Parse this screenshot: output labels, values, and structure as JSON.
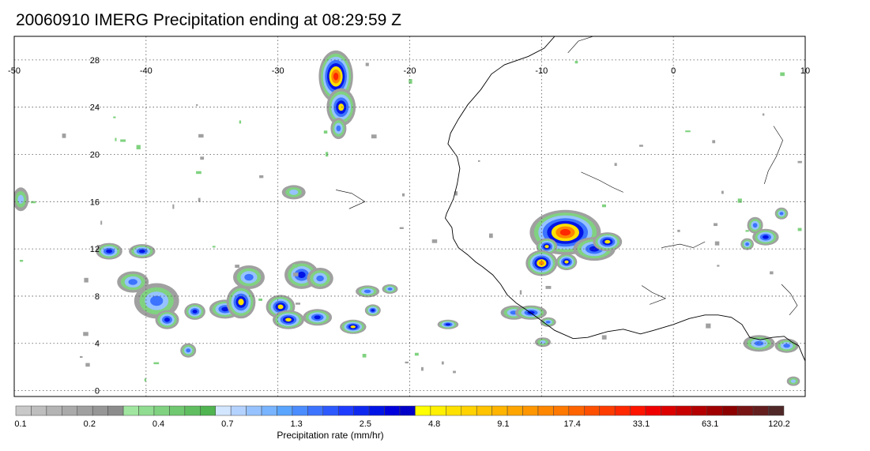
{
  "title": "20060910 IMERG Precipitation ending at 08:29:59 Z",
  "map": {
    "lon_labels": [
      "-50",
      "-40",
      "-30",
      "-20",
      "-10",
      "0",
      "10"
    ],
    "lon_values": [
      -50,
      -40,
      -30,
      -20,
      -10,
      0,
      10
    ],
    "lat_labels": [
      "0",
      "4",
      "8",
      "12",
      "16",
      "20",
      "24",
      "28"
    ],
    "lat_values": [
      0,
      4,
      8,
      12,
      16,
      20,
      24,
      28
    ],
    "lon_range": [
      -50,
      10
    ],
    "lat_range": [
      -0.5,
      30
    ],
    "grid": "dotted",
    "coastline_color": "#000000",
    "features": [
      {
        "name": "storm-cluster-north-atlantic",
        "lon": -25.5,
        "lat": 26.0,
        "intensity": "high"
      },
      {
        "name": "storm-cluster-guinea",
        "lon": -8.0,
        "lat": 13.0,
        "intensity": "very-high"
      },
      {
        "name": "storm-band-itcz-west",
        "lon": -37.0,
        "lat": 7.0,
        "intensity": "moderate"
      },
      {
        "name": "storm-band-itcz-central",
        "lon": -28.0,
        "lat": 6.5,
        "intensity": "moderate"
      },
      {
        "name": "storm-cluster-gulf-of-guinea",
        "lon": 7.0,
        "lat": 13.0,
        "intensity": "moderate"
      }
    ]
  },
  "colorbar": {
    "title": "Precipitation rate (mm/hr)",
    "tick_labels": [
      "0.1",
      "0.2",
      "0.4",
      "0.7",
      "1.3",
      "2.5",
      "4.8",
      "9.1",
      "17.4",
      "33.1",
      "63.1",
      "120.2"
    ],
    "colors": [
      "#c8c8c8",
      "#bebebe",
      "#b4b4b4",
      "#aaaaaa",
      "#a0a0a0",
      "#969696",
      "#8c8c8c",
      "#a0e6a0",
      "#90dc90",
      "#80d280",
      "#70c870",
      "#60be60",
      "#50b450",
      "#d2e6ff",
      "#b4d2ff",
      "#96c3ff",
      "#78b4ff",
      "#5aa5ff",
      "#4b8cff",
      "#3c73ff",
      "#2d5aff",
      "#1e3cff",
      "#0f28f0",
      "#0014e6",
      "#0000dc",
      "#0000c8",
      "#ffff00",
      "#fff000",
      "#ffe100",
      "#ffd200",
      "#ffc300",
      "#ffb400",
      "#ffa500",
      "#ff9600",
      "#ff8700",
      "#ff7800",
      "#ff6400",
      "#ff5000",
      "#ff3c00",
      "#ff2800",
      "#ff1400",
      "#f00000",
      "#dc0000",
      "#c80000",
      "#b40000",
      "#a00000",
      "#8c0000",
      "#781414",
      "#641e1e",
      "#502828"
    ]
  }
}
